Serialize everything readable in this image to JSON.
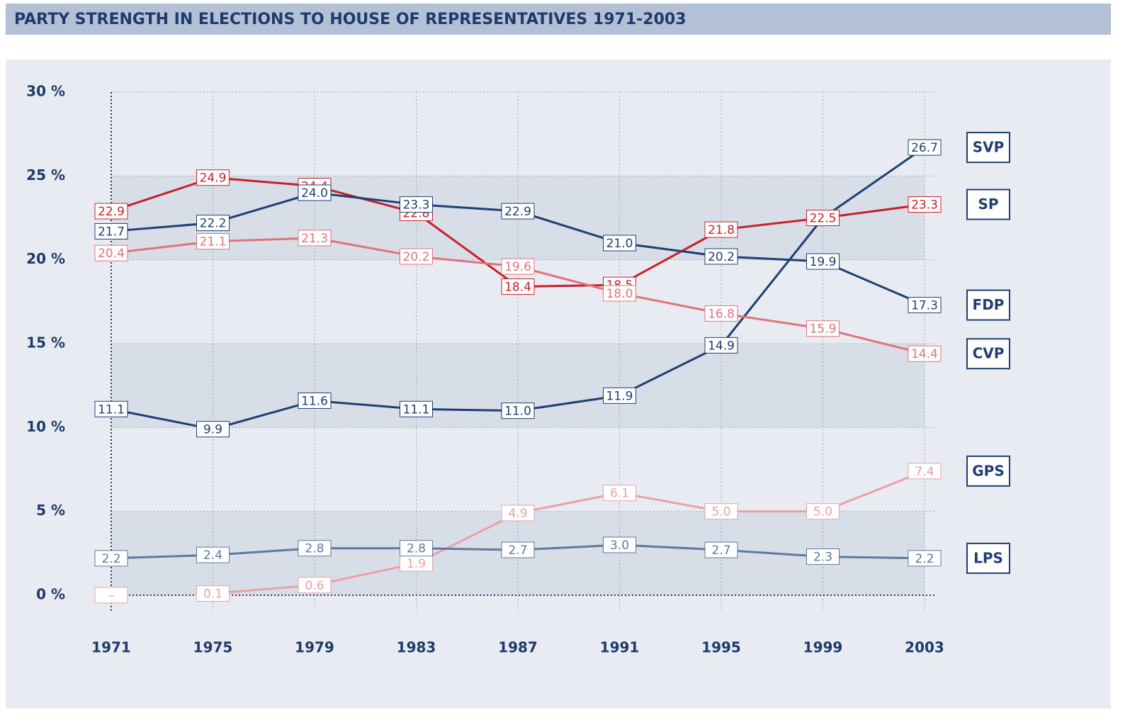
{
  "chart_data": {
    "type": "line",
    "title": "PARTY STRENGTH IN ELECTIONS TO HOUSE OF REPRESENTATIVES 1971-2003",
    "categories": [
      "1971",
      "1975",
      "1979",
      "1983",
      "1987",
      "1991",
      "1995",
      "1999",
      "2003"
    ],
    "ylim": [
      0,
      30
    ],
    "yticks": [
      {
        "value": 0,
        "label": "0 %"
      },
      {
        "value": 5,
        "label": "5 %"
      },
      {
        "value": 10,
        "label": "10 %"
      },
      {
        "value": 15,
        "label": "15 %"
      },
      {
        "value": 20,
        "label": "20 %"
      },
      {
        "value": 25,
        "label": "25 %"
      },
      {
        "value": 30,
        "label": "30 %"
      }
    ],
    "grid": true,
    "series": [
      {
        "name": "SVP",
        "color": "#1f3f73",
        "values": [
          11.1,
          9.9,
          11.6,
          11.1,
          11.0,
          11.9,
          14.9,
          22.5,
          26.7
        ],
        "value_labels": [
          "11.1",
          "9.9",
          "11.6",
          "11.1",
          "11.0",
          "11.9",
          "14.9",
          "22.5",
          "26.7"
        ]
      },
      {
        "name": "SP",
        "color": "#c8202a",
        "values": [
          22.9,
          24.9,
          24.4,
          22.8,
          18.4,
          18.5,
          21.8,
          22.5,
          23.3
        ],
        "value_labels": [
          "22.9",
          "24.9",
          "24.4",
          "22.8",
          "18.4",
          "18.5",
          "21.8",
          "22.5",
          "23.3"
        ]
      },
      {
        "name": "FDP",
        "color": "#1f3f73",
        "values": [
          21.7,
          22.2,
          24.0,
          23.3,
          22.9,
          21.0,
          20.2,
          19.9,
          17.3
        ],
        "value_labels": [
          "21.7",
          "22.2",
          "24.0",
          "23.3",
          "22.9",
          "21.0",
          "20.2",
          "19.9",
          "17.3"
        ]
      },
      {
        "name": "CVP",
        "color": "#e0737a",
        "values": [
          20.4,
          21.1,
          21.3,
          20.2,
          19.6,
          18.0,
          16.8,
          15.9,
          14.4
        ],
        "value_labels": [
          "20.4",
          "21.1",
          "21.3",
          "20.2",
          "19.6",
          "18.0",
          "16.8",
          "15.9",
          "14.4"
        ]
      },
      {
        "name": "GPS",
        "color": "#eba0a4",
        "values": [
          null,
          0.1,
          0.6,
          1.9,
          4.9,
          6.1,
          5.0,
          5.0,
          7.4
        ],
        "value_labels": [
          "–",
          "0.1",
          "0.6",
          "1.9",
          "4.9",
          "6.1",
          "5.0",
          "5.0",
          "7.4"
        ]
      },
      {
        "name": "LPS",
        "color": "#5c7a9e",
        "values": [
          2.2,
          2.4,
          2.8,
          2.8,
          2.7,
          3.0,
          2.7,
          2.3,
          2.2
        ],
        "value_labels": [
          "2.2",
          "2.4",
          "2.8",
          "2.8",
          "2.7",
          "3.0",
          "2.7",
          "2.3",
          "2.2"
        ]
      }
    ]
  }
}
